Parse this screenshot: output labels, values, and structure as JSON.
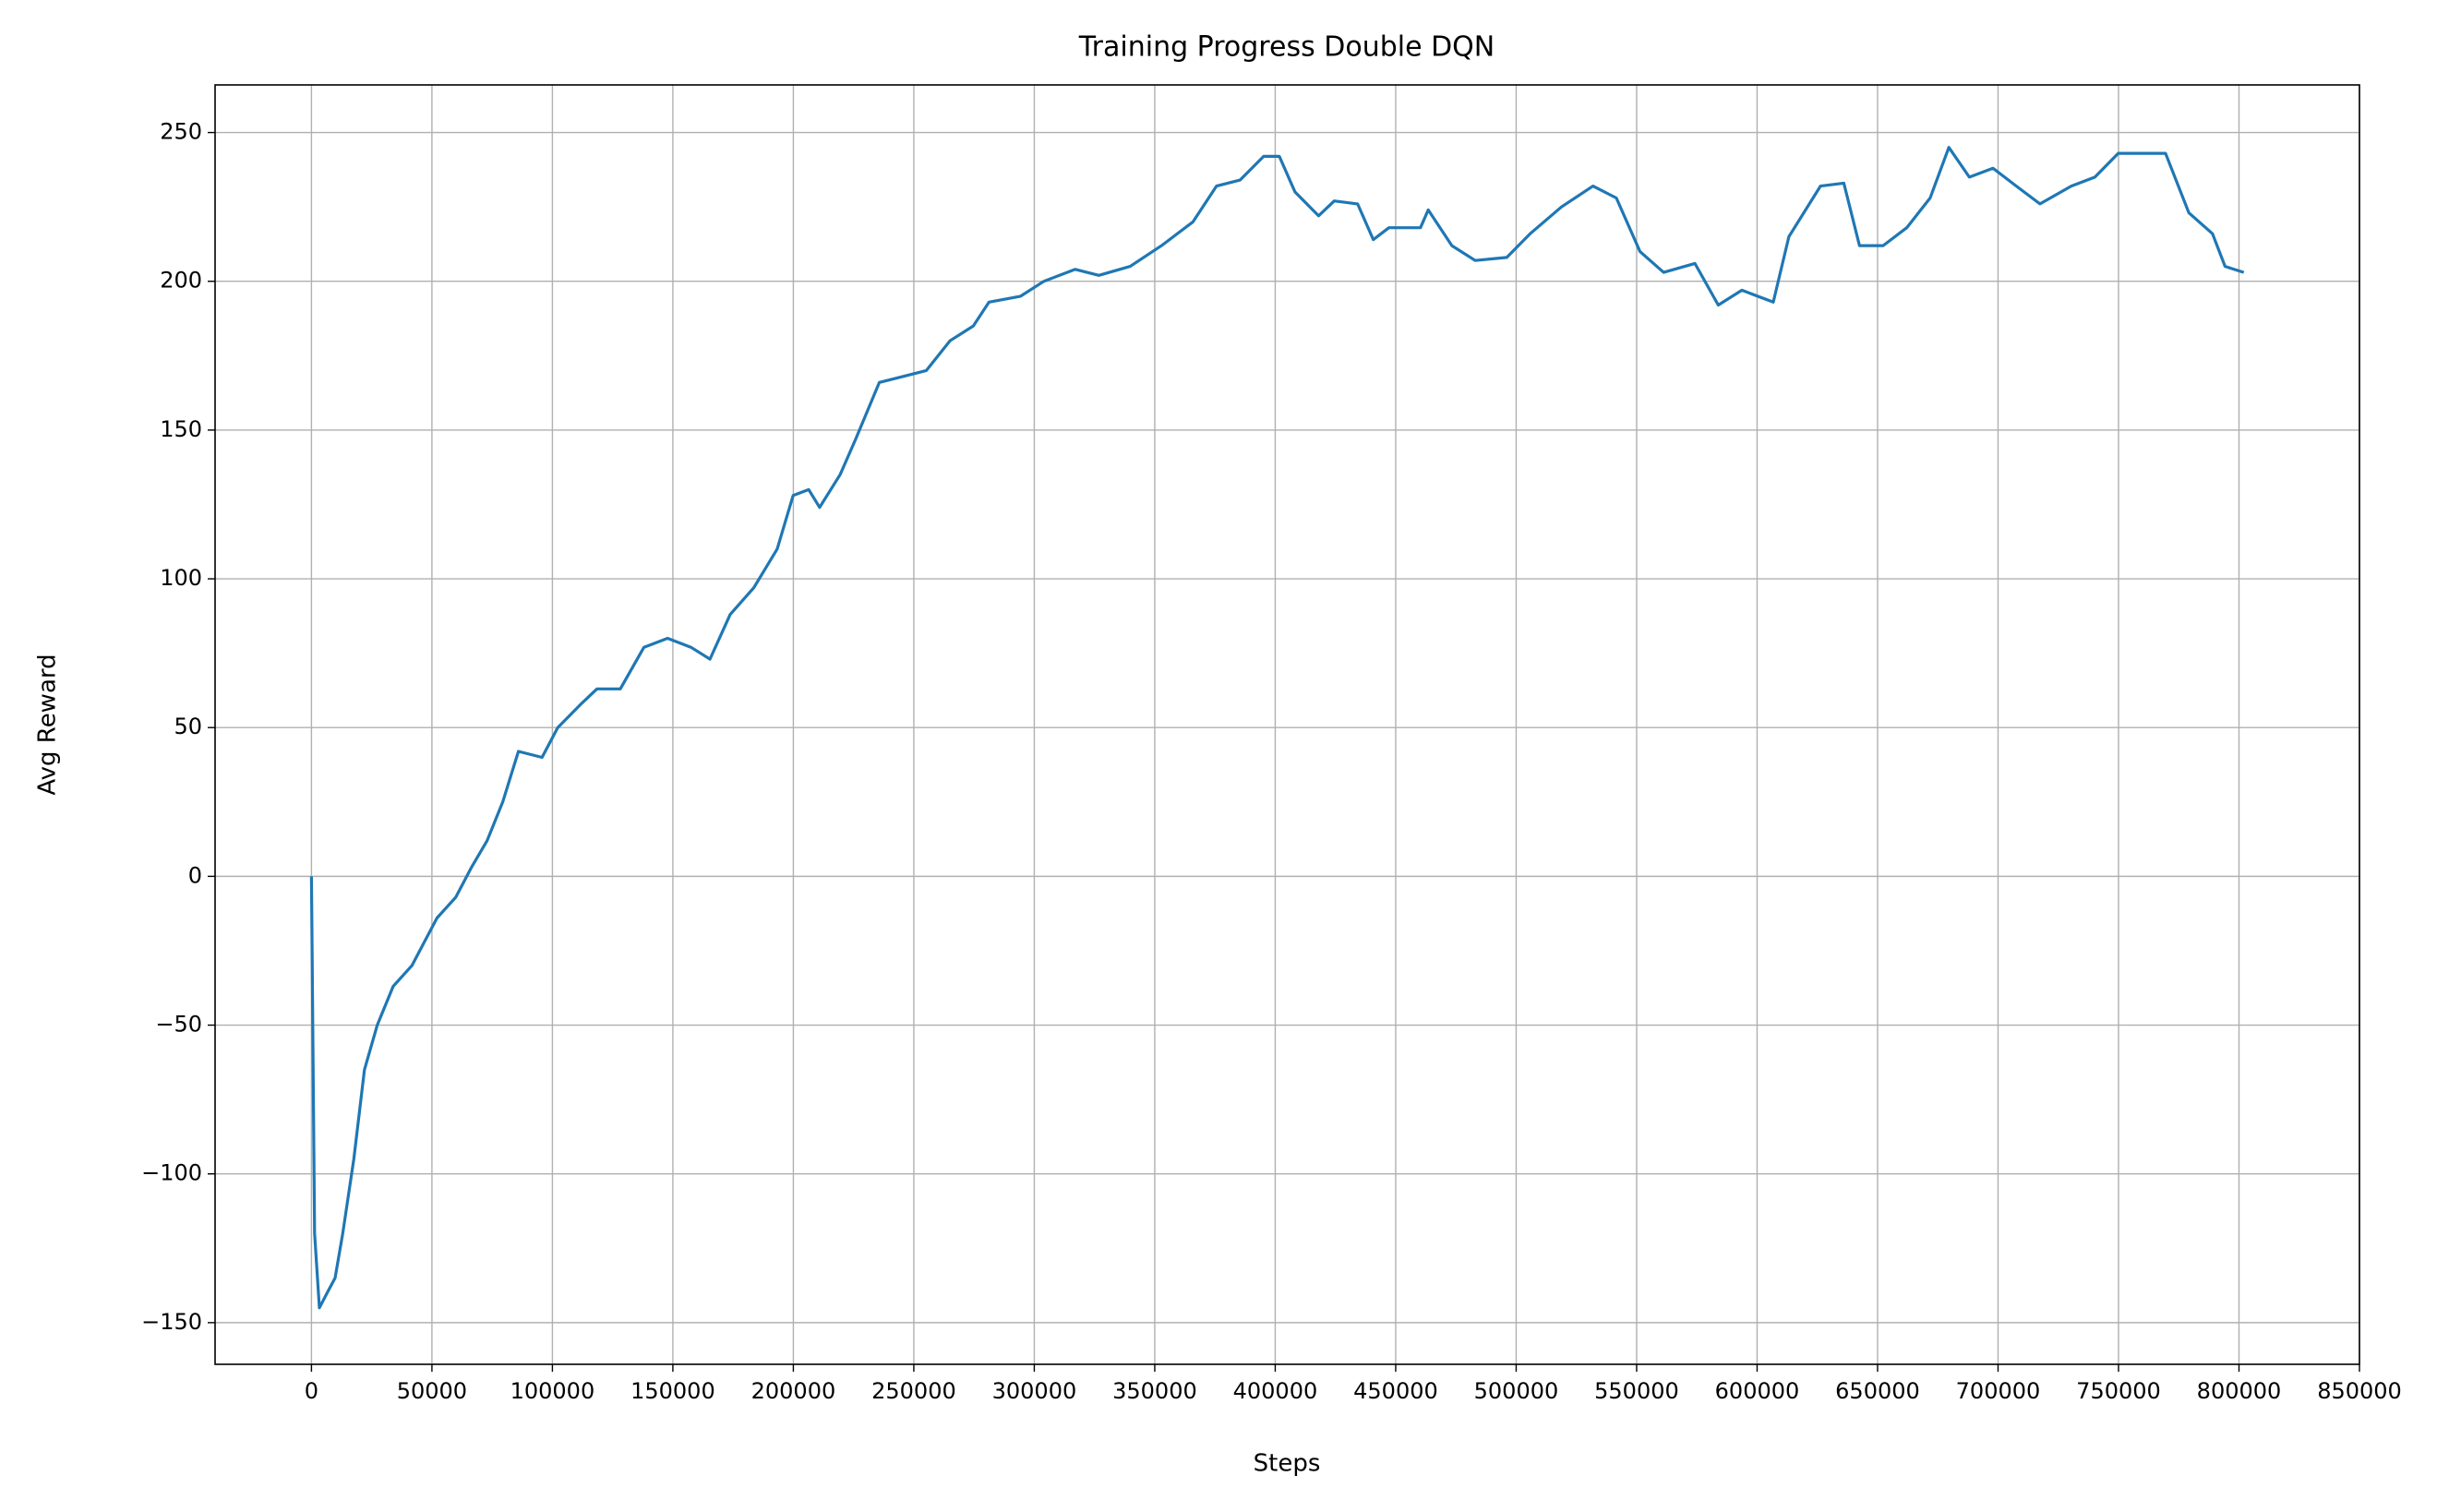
{
  "chart_data": {
    "type": "line",
    "title": "Training Progress Double DQN",
    "xlabel": "Steps",
    "ylabel": "Avg Reward",
    "x": [
      0,
      1300,
      3300,
      6500,
      9800,
      13000,
      17600,
      22000,
      27300,
      33900,
      41700,
      46900,
      52100,
      59900,
      66400,
      72900,
      79400,
      85900,
      95700,
      102200,
      112000,
      118500,
      128200,
      138000,
      147800,
      157500,
      165400,
      173800,
      183600,
      193300,
      199900,
      206400,
      210900,
      219400,
      225900,
      235700,
      245400,
      255200,
      265000,
      274700,
      281200,
      294300,
      304000,
      317000,
      326800,
      339800,
      352800,
      365900,
      375600,
      385400,
      395200,
      401700,
      408200,
      418000,
      424500,
      434200,
      440700,
      447200,
      460300,
      463500,
      473300,
      483000,
      496100,
      505800,
      518800,
      531900,
      541600,
      551400,
      561200,
      574200,
      583900,
      593700,
      606700,
      613200,
      626300,
      636000,
      642500,
      652300,
      662100,
      671800,
      679600,
      688100,
      697900,
      707600,
      717400,
      730400,
      740200,
      749900,
      759700,
      769500,
      779200,
      789000,
      794200,
      802000
    ],
    "series": [
      {
        "name": "Avg Reward",
        "color": "#1f77b4",
        "values": [
          0,
          -120,
          -145,
          -140,
          -135,
          -120,
          -95,
          -65,
          -50,
          -37,
          -30,
          -22,
          -14,
          -7,
          3,
          12,
          25,
          42,
          40,
          50,
          58,
          63,
          63,
          77,
          80,
          77,
          73,
          88,
          97,
          110,
          128,
          130,
          124,
          135,
          147,
          166,
          168,
          170,
          180,
          185,
          193,
          195,
          200,
          204,
          202,
          205,
          212,
          220,
          232,
          234,
          242,
          242,
          230,
          222,
          227,
          226,
          214,
          218,
          218,
          224,
          212,
          207,
          208,
          216,
          225,
          232,
          228,
          210,
          203,
          206,
          192,
          197,
          193,
          215,
          232,
          233,
          212,
          212,
          218,
          228,
          245,
          235,
          238,
          232,
          226,
          232,
          235,
          243,
          243,
          243,
          223,
          216,
          205,
          203
        ]
      }
    ],
    "xlim": [
      -40000,
      850000
    ],
    "xticks": [
      0,
      50000,
      100000,
      150000,
      200000,
      250000,
      300000,
      350000,
      400000,
      450000,
      500000,
      550000,
      600000,
      650000,
      700000,
      750000,
      800000,
      850000
    ],
    "ylim": [
      -164,
      266
    ],
    "yticks": [
      {
        "value": -150,
        "label": "−150"
      },
      {
        "value": -100,
        "label": "−100"
      },
      {
        "value": -50,
        "label": "−50"
      },
      0,
      50,
      100,
      150,
      200,
      250
    ],
    "grid": true
  }
}
